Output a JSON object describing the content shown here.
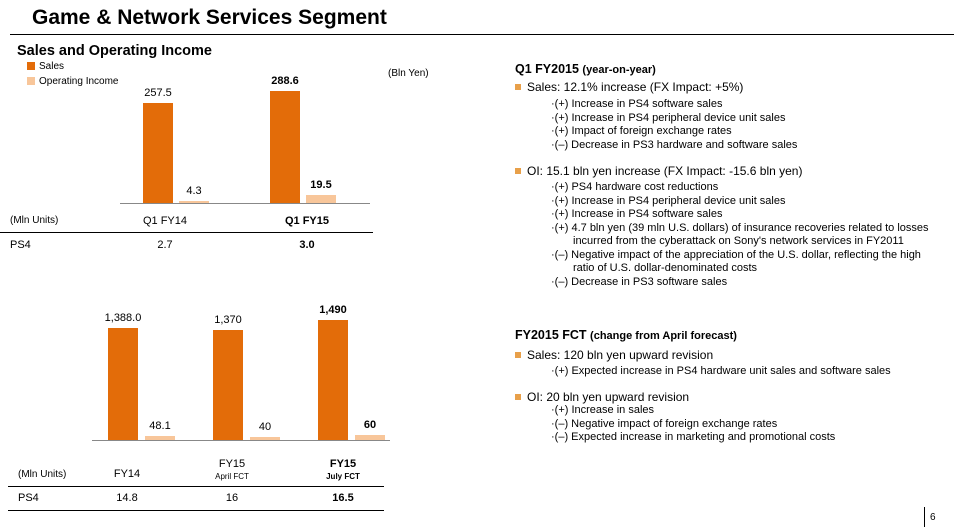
{
  "title": "Game & Network Services Segment",
  "section_title": "Sales and Operating Income",
  "colors": {
    "sales": "#E36C09",
    "oi": "#F8C69A",
    "bullet": "#E8A04A"
  },
  "legend": {
    "sales": "Sales",
    "oi": "Operating Income"
  },
  "unit_bln": "(Bln Yen)",
  "chart_data": [
    {
      "type": "bar",
      "unit": "(Bln Yen)",
      "categories": [
        "Q1 FY14",
        "Q1 FY15"
      ],
      "series": [
        {
          "name": "Sales",
          "values": [
            257.5,
            288.6
          ],
          "labels": [
            "257.5",
            "288.6"
          ]
        },
        {
          "name": "Operating Income",
          "values": [
            4.3,
            19.5
          ],
          "labels": [
            "4.3",
            "19.5"
          ]
        }
      ],
      "table": {
        "unit_label": "(Mln Units)",
        "row_label": "PS4",
        "values": [
          "2.7",
          "3.0"
        ]
      }
    },
    {
      "type": "bar",
      "unit": "(Bln Yen)",
      "categories": [
        "FY14",
        "FY15",
        "FY15"
      ],
      "category_subs": [
        "",
        "April FCT",
        "July FCT"
      ],
      "series": [
        {
          "name": "Sales",
          "values": [
            1388.0,
            1370,
            1490
          ],
          "labels": [
            "1,388.0",
            "1,370",
            "1,490"
          ]
        },
        {
          "name": "Operating Income",
          "values": [
            48.1,
            40,
            60
          ],
          "labels": [
            "48.1",
            "40",
            "60"
          ]
        }
      ],
      "table": {
        "unit_label": "(Mln Units)",
        "row_label": "PS4",
        "values": [
          "14.8",
          "16",
          "16.5"
        ]
      }
    }
  ],
  "q1": {
    "heading": "Q1 FY2015",
    "heading_sub": "(year-on-year)",
    "sales_bullet": "Sales: 12.1% increase (FX Impact: +5%)",
    "sales_items": [
      "·(+) Increase in PS4 software sales",
      "·(+) Increase in PS4 peripheral device unit sales",
      "·(+) Impact of foreign exchange rates",
      "·(–) Decrease in PS3 hardware and software sales"
    ],
    "oi_bullet": "OI: 15.1 bln yen increase (FX Impact: -15.6 bln yen)",
    "oi_items": [
      "·(+) PS4 hardware cost reductions",
      "·(+) Increase in PS4 peripheral device unit sales",
      "·(+) Increase in PS4 software sales",
      "·(+) 4.7 bln yen (39 mln U.S. dollars) of insurance recoveries related to losses",
      "incurred from the cyberattack on Sony's network services in FY2011",
      "·(–) Negative impact of the appreciation of the U.S. dollar, reflecting the high",
      "ratio of U.S. dollar-denominated costs",
      "·(–) Decrease in PS3 software sales"
    ]
  },
  "fct": {
    "heading": "FY2015 FCT",
    "heading_sub": "(change from April forecast)",
    "sales_bullet": "Sales: 120 bln yen upward revision",
    "sales_items": [
      "·(+) Expected increase in PS4 hardware unit sales and software sales"
    ],
    "oi_bullet": "OI: 20 bln yen upward revision",
    "oi_items": [
      "·(+) Increase in sales",
      "·(–) Negative impact of foreign exchange rates",
      "·(–) Expected increase in marketing and promotional costs"
    ]
  },
  "page_number": "6"
}
